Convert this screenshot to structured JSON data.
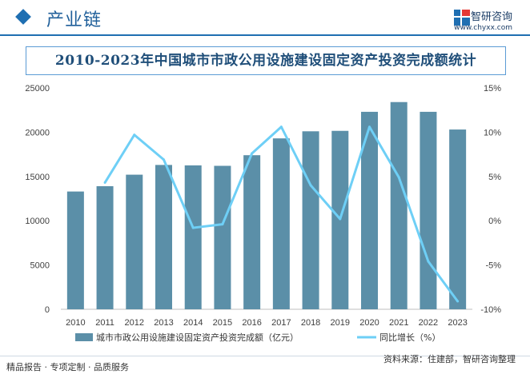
{
  "header": {
    "title": "产业链",
    "brand_name": "智研咨询",
    "brand_url": "www.chyxx.com"
  },
  "chart_data": {
    "type": "bar",
    "title": "2010-2023年中国城市市政公用设施建设固定资产投资完成额统计",
    "categories": [
      "2010",
      "2011",
      "2012",
      "2013",
      "2014",
      "2015",
      "2016",
      "2017",
      "2018",
      "2019",
      "2020",
      "2021",
      "2022",
      "2023"
    ],
    "series": [
      {
        "name": "城市市政公用设施建设固定资产投资完成额（亿元）",
        "type": "bar",
        "axis": "left",
        "color": "#5b8fa8",
        "values": [
          13300,
          13900,
          15200,
          16300,
          16250,
          16200,
          17400,
          19300,
          20100,
          20150,
          22300,
          23400,
          22300,
          20300
        ]
      },
      {
        "name": "同比增长（%）",
        "type": "line",
        "axis": "right",
        "color": "#6ecff6",
        "values": [
          null,
          4.3,
          9.7,
          6.9,
          -0.8,
          -0.4,
          7.6,
          10.6,
          4.0,
          0.2,
          10.6,
          4.9,
          -4.6,
          -9.1
        ]
      }
    ],
    "y_left": {
      "min": 0,
      "max": 25000,
      "ticks": [
        "0",
        "5000",
        "10000",
        "15000",
        "20000",
        "25000"
      ]
    },
    "y_right": {
      "min": -10,
      "max": 15,
      "ticks": [
        "-10%",
        "-5%",
        "0%",
        "5%",
        "10%",
        "15%"
      ]
    },
    "grid": false,
    "legend_position": "bottom"
  },
  "footer": {
    "left": "精品报告 · 专项定制 · 品质服务",
    "source": "资料来源：住建部，智研咨询整理"
  },
  "colors": {
    "accent": "#1f6fb2",
    "bar": "#5b8fa8",
    "line": "#6ecff6",
    "title": "#1f4e79"
  }
}
